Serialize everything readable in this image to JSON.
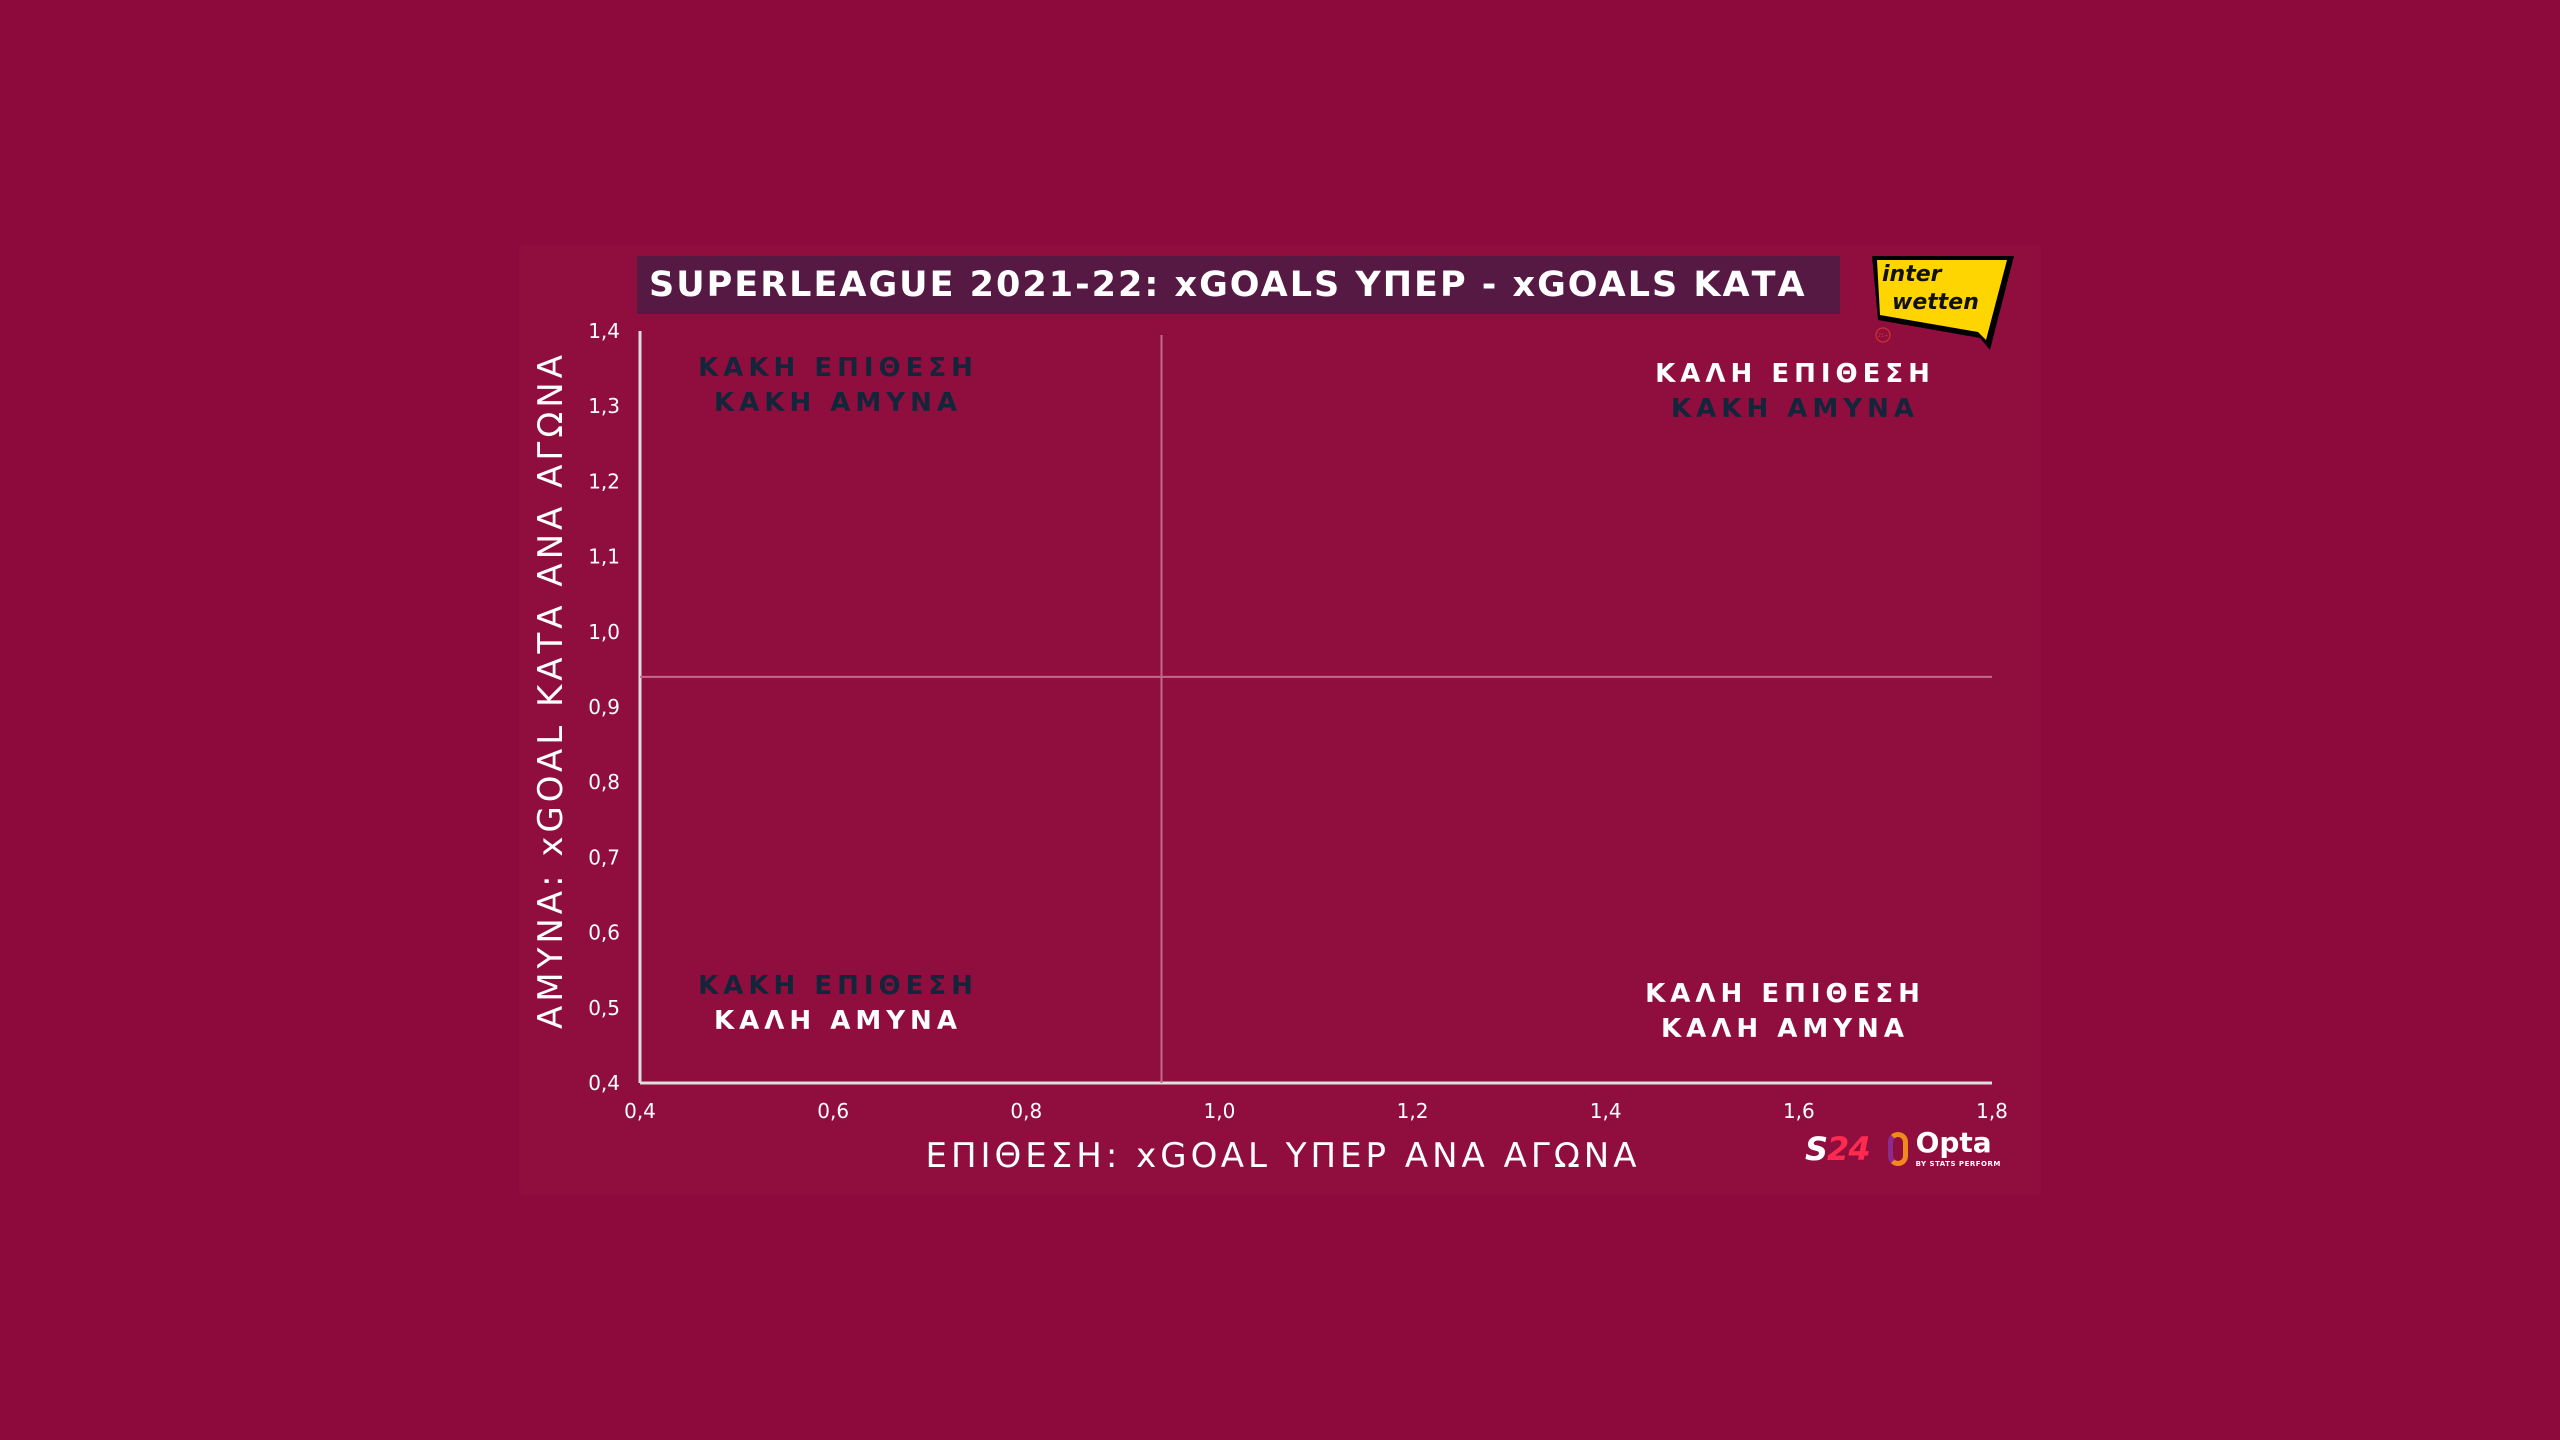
{
  "title": "SUPERLEAGUE 2021-22: xGOALS ΥΠΕΡ - xGOALS ΚΑΤΑ",
  "sponsor": {
    "line1": "inter",
    "line2": "wetten",
    "age": "21+"
  },
  "brands": {
    "s24_a": "S",
    "s24_b": "24",
    "opta": "Opta",
    "opta_sub": "BY STATS PERFORM"
  },
  "colors": {
    "background": "#8c0a3c",
    "title_bg": "#561943",
    "bad": "#12253a",
    "good": "#ffffff",
    "sponsor": "#ffd500"
  },
  "chart_data": {
    "type": "scatter",
    "title": "SUPERLEAGUE 2021-22: xGOALS ΥΠΕΡ - xGOALS ΚΑΤΑ",
    "xlabel": "ΕΠΙΘΕΣΗ: xGOAL ΥΠΕΡ ΑΝΑ ΑΓΩΝΑ",
    "ylabel": "ΑΜΥΝΑ: xGOAL ΚΑΤΑ ΑΝΑ ΑΓΩΝΑ",
    "xlim": [
      0.4,
      1.8
    ],
    "ylim": [
      0.4,
      1.4
    ],
    "x_ticks": [
      "0,4",
      "0,6",
      "0,8",
      "1,0",
      "1,2",
      "1,4",
      "1,6",
      "1,8"
    ],
    "y_ticks": [
      "0,4",
      "0,5",
      "0,6",
      "0,7",
      "0,8",
      "0,9",
      "1,0",
      "1,1",
      "1,2",
      "1,3",
      "1,4"
    ],
    "x_tick_values": [
      0.4,
      0.6,
      0.8,
      1.0,
      1.2,
      1.4,
      1.6,
      1.8
    ],
    "y_tick_values": [
      0.4,
      0.5,
      0.6,
      0.7,
      0.8,
      0.9,
      1.0,
      1.1,
      1.2,
      1.3,
      1.4
    ],
    "reference_lines": {
      "x": 0.94,
      "y": 0.94
    },
    "grid": false,
    "points": [],
    "quadrants": [
      {
        "pos": "top-left",
        "line1": "ΚΑΚΗ ΕΠΙΘΕΣΗ",
        "line1_good": false,
        "line2": "ΚΑΚΗ ΑΜΥΝΑ",
        "line2_good": false
      },
      {
        "pos": "top-right",
        "line1": "ΚΑΛΗ ΕΠΙΘΕΣΗ",
        "line1_good": true,
        "line2": "ΚΑΚΗ ΑΜΥΝΑ",
        "line2_good": false
      },
      {
        "pos": "bottom-left",
        "line1": "ΚΑΚΗ ΕΠΙΘΕΣΗ",
        "line1_good": false,
        "line2": "ΚΑΛΗ ΑΜΥΝΑ",
        "line2_good": true
      },
      {
        "pos": "bottom-right",
        "line1": "ΚΑΛΗ ΕΠΙΘΕΣΗ",
        "line1_good": true,
        "line2": "ΚΑΛΗ ΑΜΥΝΑ",
        "line2_good": true
      }
    ]
  }
}
